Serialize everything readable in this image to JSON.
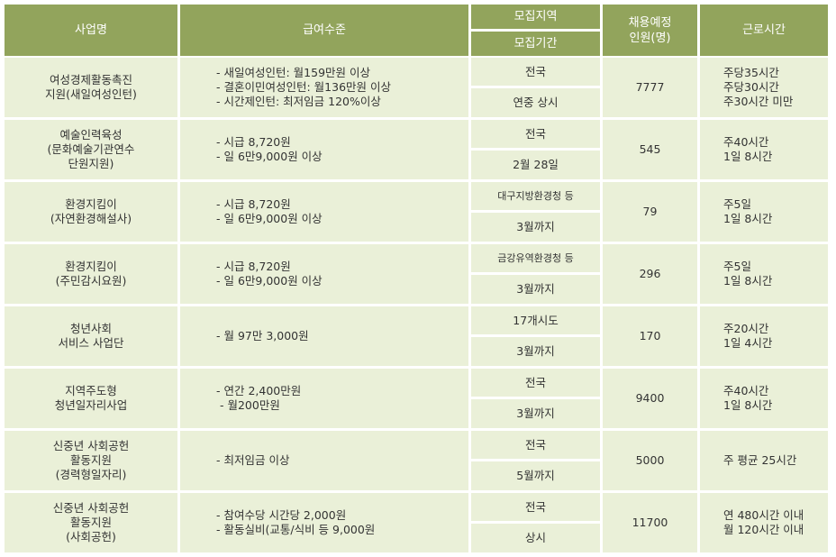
{
  "header": {
    "business": "사업명",
    "pay": "급여수준",
    "region": "모집지역",
    "period": "모집기간",
    "headcount": [
      "채용예정",
      "인원(명)"
    ],
    "hours": "근로시간"
  },
  "rows": [
    {
      "name": [
        "여성경제활동촉진",
        "지원(새일여성인턴)"
      ],
      "pay": [
        "- 새일여성인턴: 월159만원 이상",
        "- 결혼이민여성인턴: 월136만원 이상",
        "- 시간제인턴: 최저임금 120%이상"
      ],
      "region": "전국",
      "period": "연중 상시",
      "headcount": "7777",
      "hours": [
        "주당35시간",
        "주당30시간",
        "주30시간 미만"
      ]
    },
    {
      "name": [
        "예술인력육성",
        "(문화예술기관연수",
        "단원지원)"
      ],
      "pay": [
        "- 시급 8,720원",
        "- 일 6만9,000원 이상"
      ],
      "region": "전국",
      "period": "2월 28일",
      "headcount": "545",
      "hours": [
        "주40시간",
        "1일 8시간"
      ]
    },
    {
      "name": [
        "환경지킴이",
        "(자연환경해설사)"
      ],
      "pay": [
        "- 시급 8,720원",
        "- 일 6만9,000원 이상"
      ],
      "region": "대구지방환경청 등",
      "period": "3월까지",
      "headcount": "79",
      "hours": [
        "주5일",
        "1일 8시간"
      ]
    },
    {
      "name": [
        "환경지킴이",
        "(주민감시요원)"
      ],
      "pay": [
        "- 시급 8,720원",
        "- 일 6만9,000원 이상"
      ],
      "region": "금강유역환경청 등",
      "period": "3월까지",
      "headcount": "296",
      "hours": [
        "주5일",
        "1일 8시간"
      ]
    },
    {
      "name": [
        "청년사회",
        "서비스 사업단"
      ],
      "pay": [
        "- 월 97만 3,000원"
      ],
      "region": "17개시도",
      "period": "3월까지",
      "headcount": "170",
      "hours": [
        "주20시간",
        "1일 4시간"
      ]
    },
    {
      "name": [
        "지역주도형",
        "청년일자리사업"
      ],
      "pay": [
        "- 연간 2,400만원",
        " - 월200만원"
      ],
      "region": "전국",
      "period": "3월까지",
      "headcount": "9400",
      "hours": [
        "주40시간",
        "1일 8시간"
      ]
    },
    {
      "name": [
        "신중년 사회공헌",
        "활동지원",
        "(경력형일자리)"
      ],
      "pay": [
        "- 최저임금 이상"
      ],
      "region": "전국",
      "period": "5월까지",
      "headcount": "5000",
      "hours": [
        "주 평균 25시간"
      ]
    },
    {
      "name": [
        "신중년 사회공헌",
        "활동지원",
        "(사회공헌)"
      ],
      "pay": [
        "- 참여수당 시간당 2,000원",
        "- 활동실비(교통/식비 등 9,000원"
      ],
      "region": "전국",
      "period": "상시",
      "headcount": "11700",
      "hours": [
        "연 480시간 이내",
        "월 120시간 이내"
      ]
    }
  ]
}
